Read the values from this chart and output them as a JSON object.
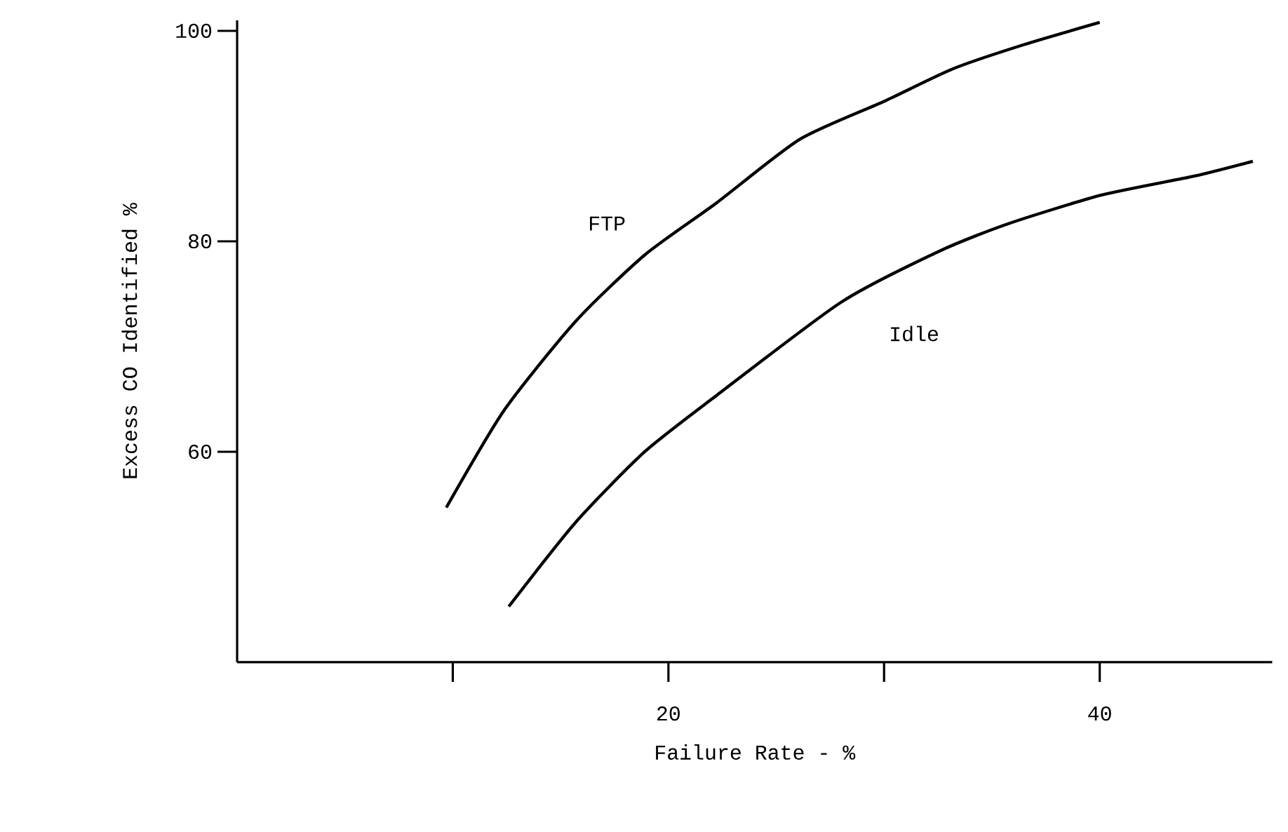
{
  "chart_data": {
    "type": "line",
    "xlabel": "Failure Rate - %",
    "ylabel": "Excess CO Identified %",
    "xlim": [
      0,
      48
    ],
    "ylim": [
      40,
      101
    ],
    "xticks": [
      {
        "value": 10,
        "label": null
      },
      20,
      {
        "value": 30,
        "label": null
      },
      40
    ],
    "yticks": [
      60,
      80,
      100
    ],
    "series": [
      {
        "name": "FTP",
        "color": "#000000",
        "x": [
          9.7,
          12.4,
          15.7,
          18.9,
          22.2,
          26.1,
          30,
          33.2,
          36.5,
          40
        ],
        "values": [
          54.7,
          64,
          72.4,
          78.7,
          83.6,
          89.7,
          93.3,
          96.4,
          98.7,
          100.8
        ]
      },
      {
        "name": "Idle",
        "color": "#000000",
        "x": [
          12.6,
          15.7,
          18.9,
          22.2,
          28,
          32.6,
          35.8,
          40.1,
          44.4,
          47.1
        ],
        "values": [
          45.3,
          53.3,
          60,
          65.3,
          74.2,
          79.1,
          81.7,
          84.4,
          86.2,
          87.6
        ]
      }
    ]
  }
}
